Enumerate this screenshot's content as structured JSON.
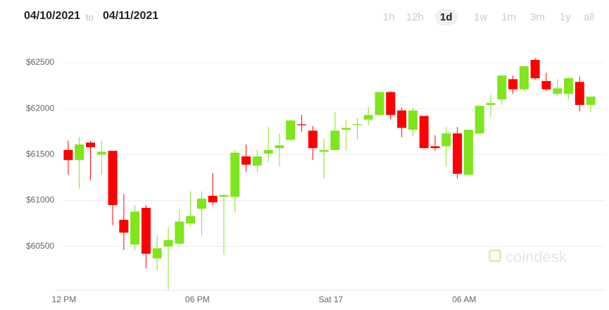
{
  "header": {
    "start_date": "04/10/2021",
    "to": "to",
    "end_date": "04/11/2021"
  },
  "range_buttons": [
    "1h",
    "12h",
    "1d",
    "1w",
    "1m",
    "3m",
    "1y",
    "all"
  ],
  "active_range": 2,
  "watermark": "coindesk",
  "chart_data": {
    "type": "candlestick",
    "categories": [
      "12 PM",
      null,
      null,
      null,
      null,
      null,
      null,
      null,
      null,
      null,
      null,
      null,
      "06 PM",
      null,
      null,
      null,
      null,
      null,
      null,
      null,
      null,
      null,
      null,
      null,
      "Sat 17",
      null,
      null,
      null,
      null,
      null,
      null,
      null,
      null,
      null,
      null,
      null,
      "06 AM",
      null,
      null,
      null,
      null,
      null,
      null,
      null,
      null,
      null,
      null,
      null
    ],
    "open": [
      61550,
      61440,
      61630,
      61500,
      61540,
      60790,
      60520,
      60920,
      60370,
      60500,
      60530,
      60750,
      60910,
      61050,
      61040,
      61040,
      61480,
      61380,
      61510,
      61570,
      61660,
      61830,
      61760,
      61530,
      61550,
      61770,
      61820,
      61880,
      61930,
      62180,
      61980,
      61770,
      61920,
      61590,
      61590,
      61730,
      61280,
      61730,
      62040,
      62100,
      62320,
      62210,
      62530,
      62300,
      62160,
      62160,
      62290,
      62040
    ],
    "high": [
      61650,
      61690,
      61650,
      61650,
      61540,
      61070,
      60950,
      60950,
      60620,
      60710,
      60900,
      61100,
      61100,
      61300,
      61070,
      61550,
      61610,
      61550,
      61800,
      61730,
      61880,
      61930,
      61810,
      61670,
      61960,
      61880,
      61900,
      62020,
      62180,
      62190,
      62010,
      62010,
      61920,
      61710,
      61800,
      61800,
      61770,
      62030,
      62150,
      62360,
      62360,
      62470,
      62550,
      62390,
      62320,
      62340,
      62350,
      62110
    ],
    "low": [
      61280,
      61130,
      61220,
      61280,
      60730,
      60460,
      60460,
      60260,
      60240,
      60030,
      60510,
      60720,
      60620,
      60950,
      60410,
      60870,
      61310,
      61310,
      61420,
      61370,
      61650,
      61750,
      61440,
      61240,
      61550,
      61540,
      61660,
      61820,
      61920,
      61880,
      61690,
      61700,
      61570,
      61540,
      61370,
      61240,
      61280,
      61730,
      61910,
      62040,
      62160,
      62190,
      62310,
      62190,
      62140,
      62100,
      61970,
      61960
    ],
    "close": [
      61440,
      61610,
      61580,
      61530,
      60950,
      60650,
      60880,
      60420,
      60480,
      60570,
      60770,
      60830,
      61020,
      60980,
      61060,
      61520,
      61390,
      61480,
      61550,
      61600,
      61870,
      61820,
      61570,
      61550,
      61760,
      61790,
      61830,
      61930,
      62180,
      61930,
      61790,
      61980,
      61570,
      61570,
      61730,
      61290,
      61770,
      62030,
      62060,
      62360,
      62210,
      62460,
      62330,
      62210,
      62220,
      62330,
      62040,
      62130
    ],
    "up_color": "#7fe51c",
    "down_color": "#ff0000",
    "ylim": [
      60000,
      62875
    ],
    "yticks": [
      {
        "value": 60500,
        "label": "$60500"
      },
      {
        "value": 61000,
        "label": "$61000"
      },
      {
        "value": 61500,
        "label": "$61500"
      },
      {
        "value": 62000,
        "label": "$62000"
      },
      {
        "value": 62500,
        "label": "$62500"
      }
    ],
    "grid": true
  }
}
